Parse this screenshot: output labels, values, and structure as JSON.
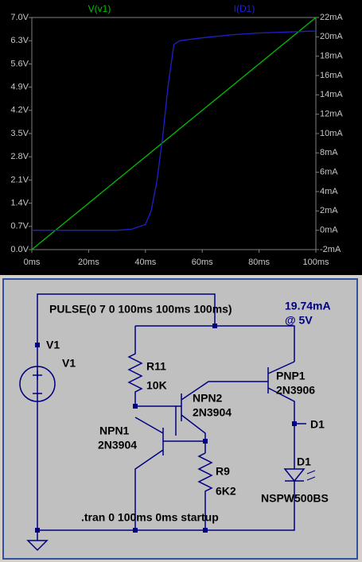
{
  "chart_data": {
    "type": "line",
    "x": [
      0,
      10,
      20,
      30,
      35,
      40,
      42,
      44,
      46,
      48,
      50,
      52,
      60,
      70,
      80,
      90,
      100
    ],
    "series": [
      {
        "name": "V(v1)",
        "color": "#00c000",
        "values": [
          0,
          0.7,
          1.4,
          2.1,
          2.45,
          2.8,
          2.94,
          3.08,
          3.22,
          3.36,
          3.5,
          3.64,
          4.2,
          4.9,
          5.6,
          6.3,
          7.0
        ]
      },
      {
        "name": "I(D1)",
        "color": "#2020d0",
        "axis": "y2",
        "values": [
          0,
          0,
          0,
          0,
          0.1,
          0.6,
          2,
          5,
          9.5,
          15,
          19.2,
          19.6,
          19.9,
          20.2,
          20.4,
          20.5,
          20.6
        ]
      }
    ],
    "xlim": [
      0,
      100
    ],
    "xticks": [
      {
        "value": 0,
        "label": "0ms"
      },
      {
        "value": 20,
        "label": "20ms"
      },
      {
        "value": 40,
        "label": "40ms"
      },
      {
        "value": 60,
        "label": "60ms"
      },
      {
        "value": 80,
        "label": "80ms"
      },
      {
        "value": 100,
        "label": "100ms"
      }
    ],
    "ylim": [
      0,
      7
    ],
    "yticks": [
      {
        "value": 0,
        "label": "0.0V"
      },
      {
        "value": 0.7,
        "label": "0.7V"
      },
      {
        "value": 1.4,
        "label": "1.4V"
      },
      {
        "value": 2.1,
        "label": "2.1V"
      },
      {
        "value": 2.8,
        "label": "2.8V"
      },
      {
        "value": 3.5,
        "label": "3.5V"
      },
      {
        "value": 4.2,
        "label": "4.2V"
      },
      {
        "value": 4.9,
        "label": "4.9V"
      },
      {
        "value": 5.6,
        "label": "5.6V"
      },
      {
        "value": 6.3,
        "label": "6.3V"
      },
      {
        "value": 7.0,
        "label": "7.0V"
      }
    ],
    "y2lim": [
      -2,
      22
    ],
    "y2ticks": [
      {
        "value": -2,
        "label": "-2mA"
      },
      {
        "value": 0,
        "label": "0mA"
      },
      {
        "value": 2,
        "label": "2mA"
      },
      {
        "value": 4,
        "label": "4mA"
      },
      {
        "value": 6,
        "label": "6mA"
      },
      {
        "value": 8,
        "label": "8mA"
      },
      {
        "value": 10,
        "label": "10mA"
      },
      {
        "value": 12,
        "label": "12mA"
      },
      {
        "value": 14,
        "label": "14mA"
      },
      {
        "value": 16,
        "label": "16mA"
      },
      {
        "value": 18,
        "label": "18mA"
      },
      {
        "value": 20,
        "label": "20mA"
      },
      {
        "value": 22,
        "label": "22mA"
      }
    ],
    "grid": false
  },
  "schematic": {
    "source": "PULSE(0 7 0 100ms 100ms 100ms)",
    "measurement": "19.74mA",
    "measurement_condition": "@ 5V",
    "node_v1": "V1",
    "v1": "V1",
    "r11": "R11",
    "r11_value": "10K",
    "npn2": "NPN2",
    "npn2_model": "2N3904",
    "pnp1": "PNP1",
    "pnp1_model": "2N3906",
    "node_d1": "D1",
    "npn1": "NPN1",
    "npn1_model": "2N3904",
    "r9": "R9",
    "r9_value": "6K2",
    "d1": "D1",
    "d1_model": "NSPW500BS",
    "directive": ".tran 0 100ms 0ms startup"
  }
}
